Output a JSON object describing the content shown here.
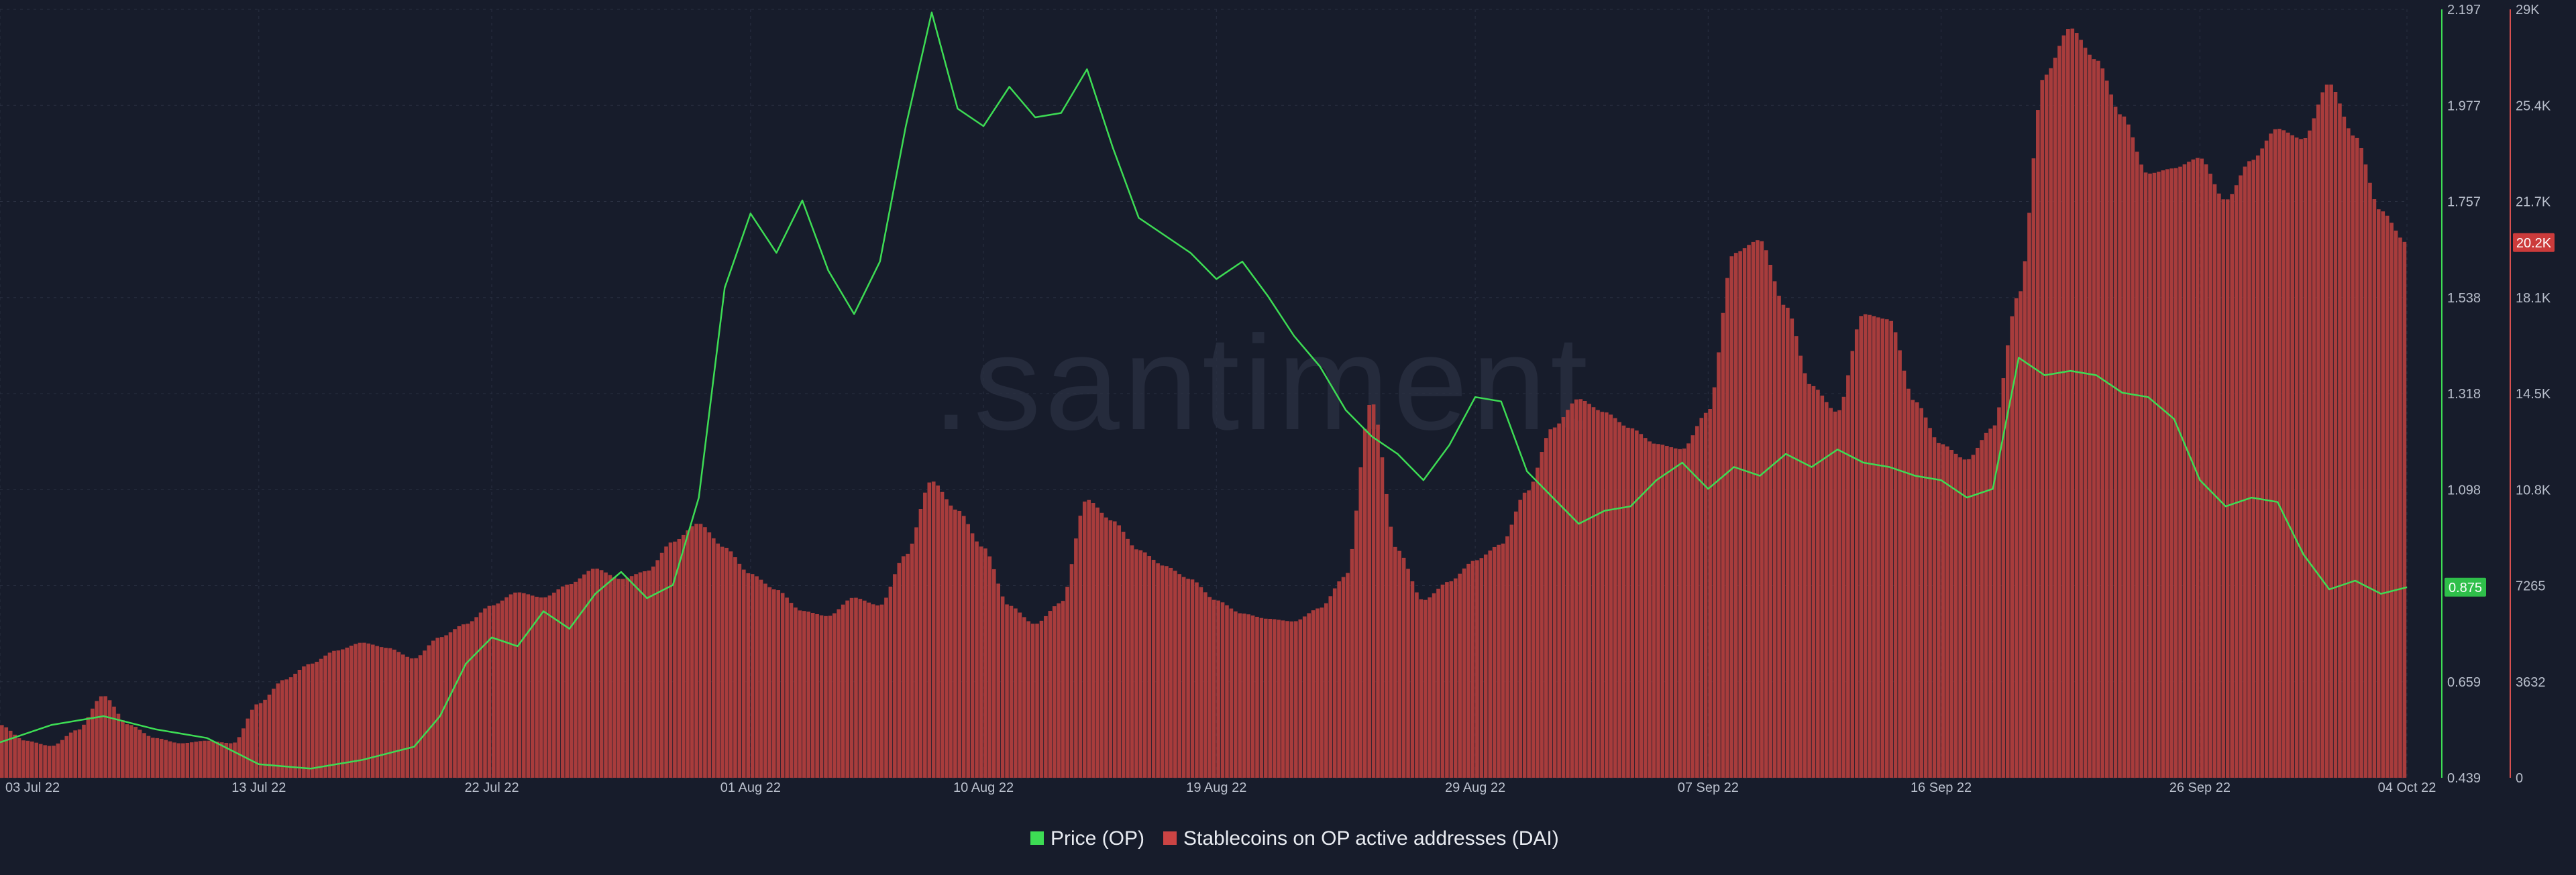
{
  "watermark": ".santiment",
  "legend": {
    "price_label": "Price (OP)",
    "addresses_label": "Stablecoins on OP active addresses (DAI)"
  },
  "badges": {
    "price": "0.875",
    "addresses": "20.2K"
  },
  "colors": {
    "background": "#171c2b",
    "grid": "#2a3042",
    "price_line": "#3ddc54",
    "bars": "#a83c3c",
    "bar_top": "#d85050",
    "price_badge": "#2fbf4a",
    "addr_badge": "#cc3b3b"
  },
  "chart_data": {
    "type": "line+bar",
    "x_axis": {
      "type": "date",
      "range": [
        "2022-07-03",
        "2022-10-04"
      ],
      "ticks": [
        {
          "date": "2022-07-03",
          "label": "03 Jul 22"
        },
        {
          "date": "2022-07-13",
          "label": "13 Jul 22"
        },
        {
          "date": "2022-07-22",
          "label": "22 Jul 22"
        },
        {
          "date": "2022-08-01",
          "label": "01 Aug 22"
        },
        {
          "date": "2022-08-10",
          "label": "10 Aug 22"
        },
        {
          "date": "2022-08-19",
          "label": "19 Aug 22"
        },
        {
          "date": "2022-08-29",
          "label": "29 Aug 22"
        },
        {
          "date": "2022-09-07",
          "label": "07 Sep 22"
        },
        {
          "date": "2022-09-16",
          "label": "16 Sep 22"
        },
        {
          "date": "2022-09-26",
          "label": "26 Sep 22"
        },
        {
          "date": "2022-10-04",
          "label": "04 Oct 22"
        }
      ]
    },
    "y_axis_price": {
      "min": 0.439,
      "max": 2.197,
      "tick_labels": [
        "0.439",
        "0.659",
        "0.878",
        "1.098",
        "1.318",
        "1.538",
        "1.757",
        "1.977",
        "2.197"
      ]
    },
    "y_axis_addresses": {
      "min": 0,
      "max": 29000,
      "tick_labels": [
        "0",
        "3632",
        "7265",
        "10.8K",
        "14.5K",
        "18.1K",
        "21.7K",
        "25.4K",
        "29K"
      ]
    },
    "grid": true,
    "legend_position": "bottom-center",
    "series": [
      {
        "name": "Price (OP)",
        "kind": "line",
        "axis": "left",
        "points": [
          [
            "2022-07-03",
            0.52
          ],
          [
            "2022-07-05",
            0.56
          ],
          [
            "2022-07-07",
            0.58
          ],
          [
            "2022-07-09",
            0.55
          ],
          [
            "2022-07-11",
            0.53
          ],
          [
            "2022-07-13",
            0.47
          ],
          [
            "2022-07-15",
            0.46
          ],
          [
            "2022-07-17",
            0.48
          ],
          [
            "2022-07-19",
            0.51
          ],
          [
            "2022-07-20",
            0.58
          ],
          [
            "2022-07-21",
            0.7
          ],
          [
            "2022-07-22",
            0.76
          ],
          [
            "2022-07-23",
            0.74
          ],
          [
            "2022-07-24",
            0.82
          ],
          [
            "2022-07-25",
            0.78
          ],
          [
            "2022-07-26",
            0.86
          ],
          [
            "2022-07-27",
            0.91
          ],
          [
            "2022-07-28",
            0.85
          ],
          [
            "2022-07-29",
            0.88
          ],
          [
            "2022-07-30",
            1.08
          ],
          [
            "2022-07-31",
            1.56
          ],
          [
            "2022-08-01",
            1.73
          ],
          [
            "2022-08-02",
            1.64
          ],
          [
            "2022-08-03",
            1.76
          ],
          [
            "2022-08-04",
            1.6
          ],
          [
            "2022-08-05",
            1.5
          ],
          [
            "2022-08-06",
            1.62
          ],
          [
            "2022-08-07",
            1.93
          ],
          [
            "2022-08-08",
            2.19
          ],
          [
            "2022-08-09",
            1.97
          ],
          [
            "2022-08-10",
            1.93
          ],
          [
            "2022-08-11",
            2.02
          ],
          [
            "2022-08-12",
            1.95
          ],
          [
            "2022-08-13",
            1.96
          ],
          [
            "2022-08-14",
            2.06
          ],
          [
            "2022-08-15",
            1.88
          ],
          [
            "2022-08-16",
            1.72
          ],
          [
            "2022-08-17",
            1.68
          ],
          [
            "2022-08-18",
            1.64
          ],
          [
            "2022-08-19",
            1.58
          ],
          [
            "2022-08-20",
            1.62
          ],
          [
            "2022-08-21",
            1.54
          ],
          [
            "2022-08-22",
            1.45
          ],
          [
            "2022-08-23",
            1.38
          ],
          [
            "2022-08-24",
            1.28
          ],
          [
            "2022-08-25",
            1.22
          ],
          [
            "2022-08-26",
            1.18
          ],
          [
            "2022-08-27",
            1.12
          ],
          [
            "2022-08-28",
            1.2
          ],
          [
            "2022-08-29",
            1.31
          ],
          [
            "2022-08-30",
            1.3
          ],
          [
            "2022-08-31",
            1.14
          ],
          [
            "2022-09-01",
            1.08
          ],
          [
            "2022-09-02",
            1.02
          ],
          [
            "2022-09-03",
            1.05
          ],
          [
            "2022-09-04",
            1.06
          ],
          [
            "2022-09-05",
            1.12
          ],
          [
            "2022-09-06",
            1.16
          ],
          [
            "2022-09-07",
            1.1
          ],
          [
            "2022-09-08",
            1.15
          ],
          [
            "2022-09-09",
            1.13
          ],
          [
            "2022-09-10",
            1.18
          ],
          [
            "2022-09-11",
            1.15
          ],
          [
            "2022-09-12",
            1.19
          ],
          [
            "2022-09-13",
            1.16
          ],
          [
            "2022-09-14",
            1.15
          ],
          [
            "2022-09-15",
            1.13
          ],
          [
            "2022-09-16",
            1.12
          ],
          [
            "2022-09-17",
            1.08
          ],
          [
            "2022-09-18",
            1.1
          ],
          [
            "2022-09-19",
            1.4
          ],
          [
            "2022-09-20",
            1.36
          ],
          [
            "2022-09-21",
            1.37
          ],
          [
            "2022-09-22",
            1.36
          ],
          [
            "2022-09-23",
            1.32
          ],
          [
            "2022-09-24",
            1.31
          ],
          [
            "2022-09-25",
            1.26
          ],
          [
            "2022-09-26",
            1.12
          ],
          [
            "2022-09-27",
            1.06
          ],
          [
            "2022-09-28",
            1.08
          ],
          [
            "2022-09-29",
            1.07
          ],
          [
            "2022-09-30",
            0.95
          ],
          [
            "2022-10-01",
            0.87
          ],
          [
            "2022-10-02",
            0.89
          ],
          [
            "2022-10-03",
            0.86
          ],
          [
            "2022-10-04",
            0.875
          ]
        ]
      },
      {
        "name": "Stablecoins on OP active addresses (DAI)",
        "kind": "bar",
        "axis": "right",
        "points": [
          [
            "2022-07-03",
            2000
          ],
          [
            "2022-07-04",
            1400
          ],
          [
            "2022-07-05",
            1200
          ],
          [
            "2022-07-06",
            1800
          ],
          [
            "2022-07-07",
            3100
          ],
          [
            "2022-07-08",
            2000
          ],
          [
            "2022-07-09",
            1500
          ],
          [
            "2022-07-10",
            1300
          ],
          [
            "2022-07-11",
            1400
          ],
          [
            "2022-07-12",
            1300
          ],
          [
            "2022-07-13",
            2800
          ],
          [
            "2022-07-14",
            3700
          ],
          [
            "2022-07-15",
            4300
          ],
          [
            "2022-07-16",
            4800
          ],
          [
            "2022-07-17",
            5100
          ],
          [
            "2022-07-18",
            4900
          ],
          [
            "2022-07-19",
            4500
          ],
          [
            "2022-07-20",
            5300
          ],
          [
            "2022-07-21",
            5800
          ],
          [
            "2022-07-22",
            6500
          ],
          [
            "2022-07-23",
            7000
          ],
          [
            "2022-07-24",
            6800
          ],
          [
            "2022-07-25",
            7300
          ],
          [
            "2022-07-26",
            7900
          ],
          [
            "2022-07-27",
            7500
          ],
          [
            "2022-07-28",
            7800
          ],
          [
            "2022-07-29",
            8900
          ],
          [
            "2022-07-30",
            9600
          ],
          [
            "2022-07-31",
            8700
          ],
          [
            "2022-08-01",
            7700
          ],
          [
            "2022-08-02",
            7100
          ],
          [
            "2022-08-03",
            6300
          ],
          [
            "2022-08-04",
            6100
          ],
          [
            "2022-08-05",
            6800
          ],
          [
            "2022-08-06",
            6500
          ],
          [
            "2022-08-07",
            8400
          ],
          [
            "2022-08-08",
            11200
          ],
          [
            "2022-08-09",
            10100
          ],
          [
            "2022-08-10",
            8700
          ],
          [
            "2022-08-11",
            6500
          ],
          [
            "2022-08-12",
            5800
          ],
          [
            "2022-08-13",
            6600
          ],
          [
            "2022-08-14",
            10500
          ],
          [
            "2022-08-15",
            9700
          ],
          [
            "2022-08-16",
            8600
          ],
          [
            "2022-08-17",
            8000
          ],
          [
            "2022-08-18",
            7500
          ],
          [
            "2022-08-19",
            6700
          ],
          [
            "2022-08-20",
            6200
          ],
          [
            "2022-08-21",
            6000
          ],
          [
            "2022-08-22",
            5900
          ],
          [
            "2022-08-23",
            6400
          ],
          [
            "2022-08-24",
            7600
          ],
          [
            "2022-08-25",
            14200
          ],
          [
            "2022-08-26",
            8600
          ],
          [
            "2022-08-27",
            6700
          ],
          [
            "2022-08-28",
            7400
          ],
          [
            "2022-08-29",
            8200
          ],
          [
            "2022-08-30",
            8800
          ],
          [
            "2022-08-31",
            10800
          ],
          [
            "2022-09-01",
            13200
          ],
          [
            "2022-09-02",
            14300
          ],
          [
            "2022-09-03",
            13800
          ],
          [
            "2022-09-04",
            13200
          ],
          [
            "2022-09-05",
            12600
          ],
          [
            "2022-09-06",
            12400
          ],
          [
            "2022-09-07",
            13800
          ],
          [
            "2022-09-08",
            19800
          ],
          [
            "2022-09-09",
            20300
          ],
          [
            "2022-09-10",
            17800
          ],
          [
            "2022-09-11",
            14800
          ],
          [
            "2022-09-12",
            13800
          ],
          [
            "2022-09-13",
            17500
          ],
          [
            "2022-09-14",
            17300
          ],
          [
            "2022-09-15",
            14200
          ],
          [
            "2022-09-16",
            12600
          ],
          [
            "2022-09-17",
            12000
          ],
          [
            "2022-09-18",
            13200
          ],
          [
            "2022-09-19",
            18200
          ],
          [
            "2022-09-20",
            26500
          ],
          [
            "2022-09-21",
            28300
          ],
          [
            "2022-09-22",
            27100
          ],
          [
            "2022-09-23",
            25000
          ],
          [
            "2022-09-24",
            22800
          ],
          [
            "2022-09-25",
            23000
          ],
          [
            "2022-09-26",
            23400
          ],
          [
            "2022-09-27",
            21800
          ],
          [
            "2022-09-28",
            23300
          ],
          [
            "2022-09-29",
            24500
          ],
          [
            "2022-09-30",
            24100
          ],
          [
            "2022-10-01",
            26200
          ],
          [
            "2022-10-02",
            24200
          ],
          [
            "2022-10-03",
            21400
          ],
          [
            "2022-10-04",
            20200
          ]
        ]
      }
    ]
  }
}
